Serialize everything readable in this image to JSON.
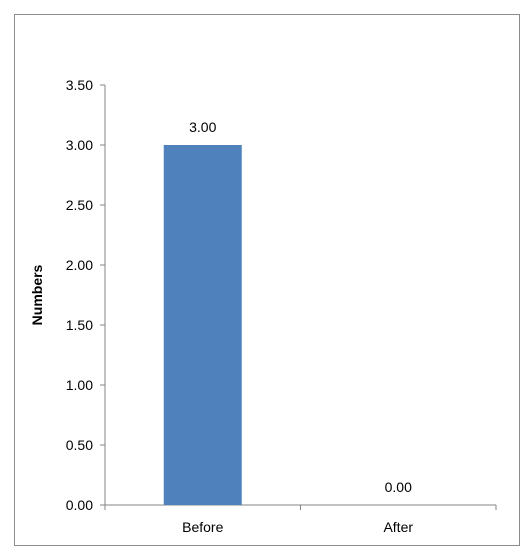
{
  "chart_data": {
    "type": "bar",
    "title": "",
    "xlabel": "",
    "ylabel": "Numbers",
    "categories": [
      "Before",
      "After"
    ],
    "values": [
      3.0,
      0.0
    ],
    "value_labels": [
      "3.00",
      "0.00"
    ],
    "ylim": [
      0,
      3.5
    ],
    "yticks": [
      0.0,
      0.5,
      1.0,
      1.5,
      2.0,
      2.5,
      3.0,
      3.5
    ],
    "ytick_labels": [
      "0.00",
      "0.50",
      "1.00",
      "1.50",
      "2.00",
      "2.50",
      "3.00",
      "3.50"
    ],
    "grid": false,
    "legend": "none",
    "bar_color": "#4f81bd",
    "axis_color": "#868686"
  }
}
